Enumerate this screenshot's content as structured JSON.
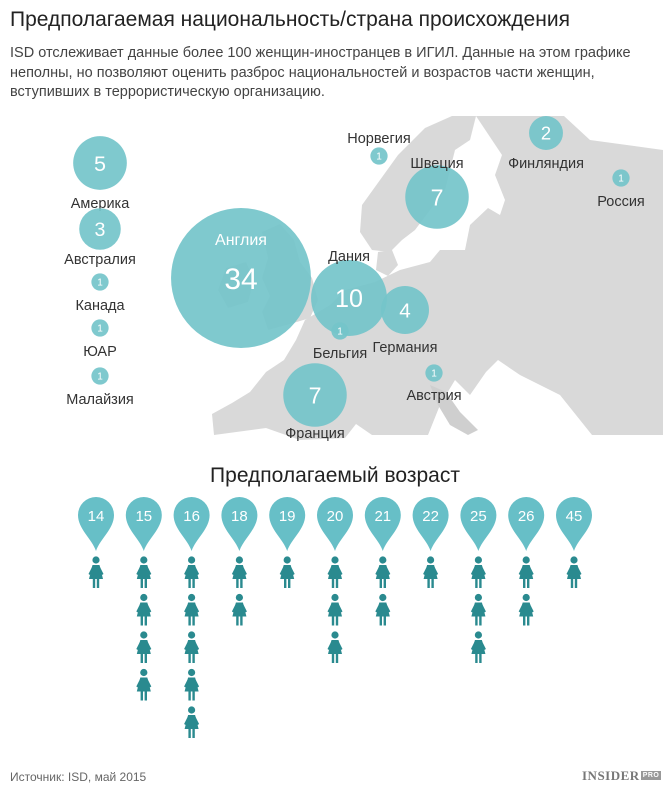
{
  "header": {
    "title": "Предполагаемая национальность/страна происхождения",
    "subtitle": "ISD отслеживает данные более 100 женщин-иностранцев в ИГИЛ. Данные на этом графике неполны, но позволяют оценить разброс национальностей и возрастов части женщин, вступивших в террористическую организацию."
  },
  "colors": {
    "bubble": "#74c4ca",
    "pin": "#67bfc7",
    "woman": "#2a8a8f",
    "map": "#d9d9d9",
    "text": "#333333"
  },
  "chart_data": [
    {
      "type": "bubble-map",
      "points": [
        {
          "name": "Америка",
          "value": 5
        },
        {
          "name": "Австралия",
          "value": 3
        },
        {
          "name": "Канада",
          "value": 1
        },
        {
          "name": "ЮАР",
          "value": 1
        },
        {
          "name": "Малайзия",
          "value": 1
        },
        {
          "name": "Англия",
          "value": 34
        },
        {
          "name": "Норвегия",
          "value": 1
        },
        {
          "name": "Швеция",
          "value": 7
        },
        {
          "name": "Финляндия",
          "value": 2
        },
        {
          "name": "Россия",
          "value": 1
        },
        {
          "name": "Дания",
          "value": 10
        },
        {
          "name": "Германия",
          "value": 4
        },
        {
          "name": "Бельгия",
          "value": 1
        },
        {
          "name": "Австрия",
          "value": 1
        },
        {
          "name": "Франция",
          "value": 7
        }
      ]
    },
    {
      "type": "pictogram",
      "title": "Предполагаемый возраст",
      "categories": [
        "14",
        "15",
        "16",
        "18",
        "19",
        "20",
        "21",
        "22",
        "25",
        "26",
        "45"
      ],
      "values": [
        1,
        4,
        5,
        2,
        1,
        3,
        2,
        1,
        3,
        2,
        1
      ]
    }
  ],
  "footer": {
    "source": "Источник: ISD, май 2015",
    "logo": "INSIDER",
    "logo_badge": "PRO"
  }
}
